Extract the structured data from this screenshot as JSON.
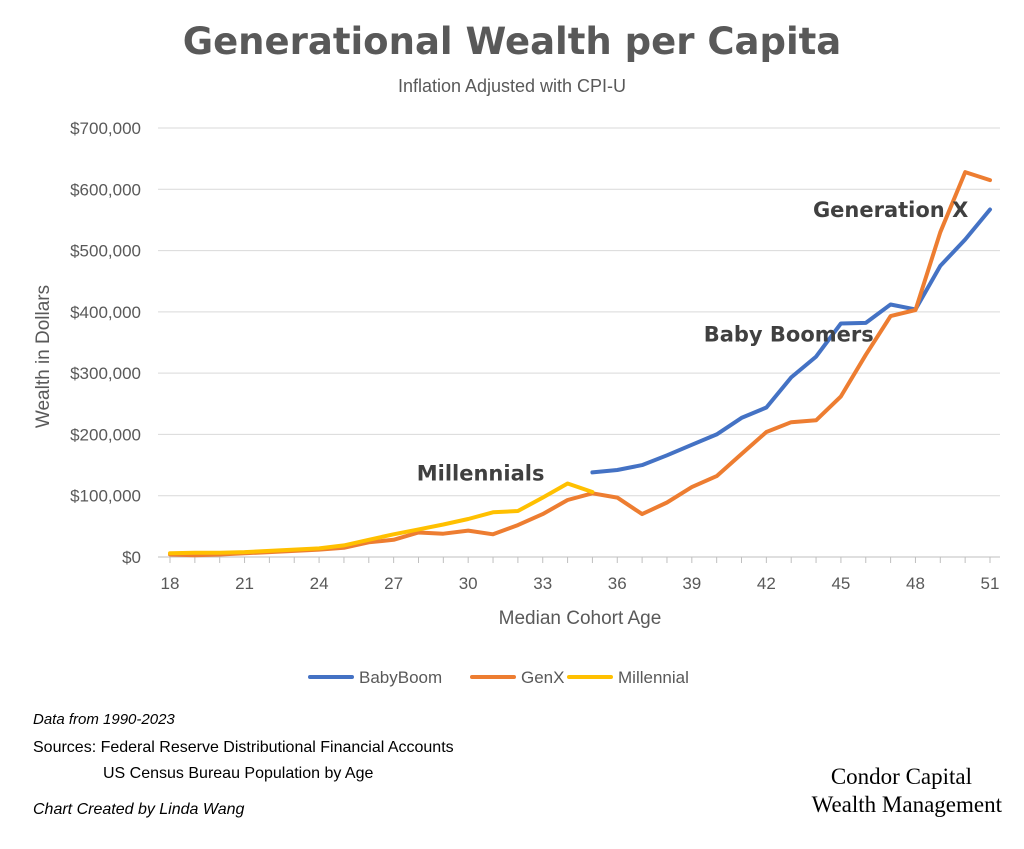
{
  "chart_data": {
    "type": "line",
    "title": "Generational Wealth per Capita",
    "subtitle": "Inflation Adjusted with CPI-U",
    "xlabel": "Median Cohort Age",
    "ylabel": "Wealth in Dollars",
    "xlim": [
      18,
      51
    ],
    "ylim": [
      0,
      700000
    ],
    "x_ticks": [
      18,
      21,
      24,
      27,
      30,
      33,
      36,
      39,
      42,
      45,
      48,
      51
    ],
    "x_tick_labels": [
      "18",
      "21",
      "24",
      "27",
      "30",
      "33",
      "36",
      "39",
      "42",
      "45",
      "48",
      "51"
    ],
    "y_ticks": [
      0,
      100000,
      200000,
      300000,
      400000,
      500000,
      600000,
      700000
    ],
    "y_tick_labels": [
      "$0",
      "$100,000",
      "$200,000",
      "$300,000",
      "$400,000",
      "$500,000",
      "$600,000",
      "$700,000"
    ],
    "grid": "horizontal",
    "legend_position": "bottom",
    "series": [
      {
        "name": "BabyBoom",
        "color": "#4472C4",
        "points": [
          [
            35,
            138000
          ],
          [
            36,
            142000
          ],
          [
            37,
            150000
          ],
          [
            38,
            166000
          ],
          [
            39,
            183000
          ],
          [
            40,
            200000
          ],
          [
            41,
            227000
          ],
          [
            42,
            244000
          ],
          [
            43,
            293000
          ],
          [
            44,
            327000
          ],
          [
            45,
            381000
          ],
          [
            46,
            382000
          ],
          [
            47,
            412000
          ],
          [
            48,
            404000
          ],
          [
            49,
            475000
          ],
          [
            50,
            518000
          ],
          [
            51,
            567000
          ]
        ]
      },
      {
        "name": "GenX",
        "color": "#ED7D31",
        "points": [
          [
            18,
            4000
          ],
          [
            19,
            3000
          ],
          [
            20,
            4000
          ],
          [
            21,
            6000
          ],
          [
            22,
            8000
          ],
          [
            23,
            10000
          ],
          [
            24,
            12000
          ],
          [
            25,
            15000
          ],
          [
            26,
            24000
          ],
          [
            27,
            28000
          ],
          [
            28,
            40000
          ],
          [
            29,
            38000
          ],
          [
            30,
            43000
          ],
          [
            31,
            37000
          ],
          [
            32,
            52000
          ],
          [
            33,
            70000
          ],
          [
            34,
            93000
          ],
          [
            35,
            104000
          ],
          [
            36,
            97000
          ],
          [
            37,
            70000
          ],
          [
            38,
            89000
          ],
          [
            39,
            114000
          ],
          [
            40,
            132000
          ],
          [
            41,
            168000
          ],
          [
            42,
            204000
          ],
          [
            43,
            220000
          ],
          [
            44,
            223000
          ],
          [
            45,
            262000
          ],
          [
            46,
            330000
          ],
          [
            47,
            393000
          ],
          [
            48,
            403000
          ],
          [
            49,
            530000
          ],
          [
            50,
            628000
          ],
          [
            51,
            615000
          ]
        ]
      },
      {
        "name": "Millennial",
        "color": "#FFC000",
        "points": [
          [
            18,
            6000
          ],
          [
            19,
            7000
          ],
          [
            20,
            7000
          ],
          [
            21,
            8000
          ],
          [
            22,
            10000
          ],
          [
            23,
            12000
          ],
          [
            24,
            14000
          ],
          [
            25,
            19000
          ],
          [
            26,
            28000
          ],
          [
            27,
            37000
          ],
          [
            28,
            45000
          ],
          [
            29,
            53000
          ],
          [
            30,
            62000
          ],
          [
            31,
            73000
          ],
          [
            32,
            75000
          ],
          [
            33,
            97000
          ],
          [
            34,
            120000
          ],
          [
            35,
            106000
          ]
        ]
      }
    ],
    "annotations": [
      {
        "text": "Generation X",
        "x": 47,
        "y": 555000
      },
      {
        "text": "Baby Boomers",
        "x": 42.9,
        "y": 352000
      },
      {
        "text": "Millennials",
        "x": 30.5,
        "y": 125000
      }
    ]
  },
  "footnotes": {
    "data_range": "Data from 1990-2023",
    "sources_line1": "Sources: Federal Reserve Distributional Financial Accounts",
    "sources_line2": "US Census Bureau Population by Age",
    "credit": "Chart Created by Linda Wang"
  },
  "brand": {
    "line1": "Condor Capital",
    "line2": "Wealth Management"
  }
}
